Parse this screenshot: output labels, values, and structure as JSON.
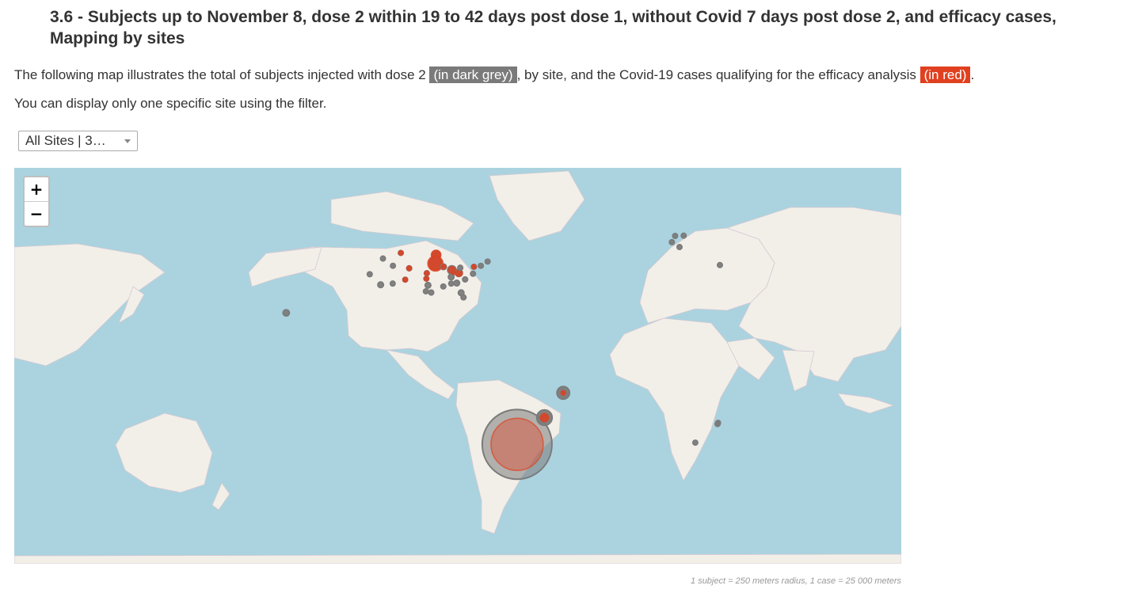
{
  "header": {
    "title": "3.6 - Subjects up to November 8, dose 2 within 19 to 42 days post dose 1, without Covid 7 days post dose 2, and efficacy cases, Mapping by sites"
  },
  "intro": {
    "part1": "The following map illustrates the total of subjects injected with dose 2 ",
    "grey_badge": "(in dark grey)",
    "part2": ", by site, and the Covid-19 cases qualifying for the efficacy analysis ",
    "red_badge": "(in red)",
    "part3": "."
  },
  "filter_note": "You can display only one specific site using the filter.",
  "site_filter": {
    "selected": "All Sites | 3…"
  },
  "zoom": {
    "in_label": "+",
    "out_label": "−"
  },
  "legend": {
    "caption": "1 subject = 250 meters radius, 1 case = 25 000 meters",
    "subjects_color": "#7b7b7b",
    "cases_color": "#e0401f"
  },
  "map": {
    "ocean_color": "#aad3df",
    "land_color": "#f2efe9",
    "sites": [
      {
        "region": "Argentina (Buenos Aires)",
        "lon": -58.4,
        "lat": -34.6,
        "subjects_scale": 1.0,
        "cases_scale": 0.75
      },
      {
        "region": "Brazil (Sao Paulo)",
        "lon": -46.6,
        "lat": -23.5,
        "subjects_scale": 0.22,
        "cases_scale": 0.12
      },
      {
        "region": "Brazil (Salvador)",
        "lon": -38.5,
        "lat": -13.0,
        "subjects_scale": 0.18,
        "cases_scale": 0.03
      },
      {
        "region": "USA (Honolulu)",
        "lon": -157.9,
        "lat": 21.3,
        "subjects_scale": 0.09,
        "cases_scale": 0
      },
      {
        "region": "USA (Minnesota)",
        "lon": -93.3,
        "lat": 45.0,
        "subjects_scale": 0.12,
        "cases_scale": 0.14
      },
      {
        "region": "USA (Iowa)",
        "lon": -93.6,
        "lat": 41.6,
        "subjects_scale": 0.18,
        "cases_scale": 0.22
      },
      {
        "region": "USA (Illinois)",
        "lon": -90.1,
        "lat": 40.3,
        "subjects_scale": 0.08,
        "cases_scale": 0.06
      },
      {
        "region": "USA (Missouri)",
        "lon": -86.5,
        "lat": 39.0,
        "subjects_scale": 0.12,
        "cases_scale": 0.1
      },
      {
        "region": "USA (Indiana)",
        "lon": -83.5,
        "lat": 37.8,
        "subjects_scale": 0.1,
        "cases_scale": 0.1
      },
      {
        "region": "USA (Colorado)",
        "lon": -104.9,
        "lat": 39.7,
        "subjects_scale": 0.07,
        "cases_scale": 0.07
      },
      {
        "region": "USA (Utah)",
        "lon": -111.9,
        "lat": 40.7,
        "subjects_scale": 0.06,
        "cases_scale": 0
      },
      {
        "region": "USA (Idaho)",
        "lon": -116.2,
        "lat": 43.6,
        "subjects_scale": 0.05,
        "cases_scale": 0
      },
      {
        "region": "USA (Montana)",
        "lon": -108.5,
        "lat": 45.8,
        "subjects_scale": 0.06,
        "cases_scale": 0.06
      },
      {
        "region": "USA (California North)",
        "lon": -121.9,
        "lat": 37.3,
        "subjects_scale": 0.05,
        "cases_scale": 0
      },
      {
        "region": "USA (California South)",
        "lon": -117.2,
        "lat": 33.0,
        "subjects_scale": 0.08,
        "cases_scale": 0
      },
      {
        "region": "USA (Arizona)",
        "lon": -112.0,
        "lat": 33.5,
        "subjects_scale": 0.05,
        "cases_scale": 0
      },
      {
        "region": "USA (New Mexico)",
        "lon": -106.6,
        "lat": 35.1,
        "subjects_scale": 0.04,
        "cases_scale": 0.03
      },
      {
        "region": "USA (Oklahoma)",
        "lon": -97.5,
        "lat": 35.5,
        "subjects_scale": 0.05,
        "cases_scale": 0.05
      },
      {
        "region": "USA (Kansas)",
        "lon": -97.3,
        "lat": 37.7,
        "subjects_scale": 0.07,
        "cases_scale": 0.06
      },
      {
        "region": "USA (Texas North)",
        "lon": -96.8,
        "lat": 32.8,
        "subjects_scale": 0.08,
        "cases_scale": 0
      },
      {
        "region": "USA (Texas Central)",
        "lon": -97.7,
        "lat": 30.3,
        "subjects_scale": 0.06,
        "cases_scale": 0
      },
      {
        "region": "USA (Houston)",
        "lon": -95.4,
        "lat": 29.8,
        "subjects_scale": 0.07,
        "cases_scale": 0
      },
      {
        "region": "USA (Tennessee)",
        "lon": -86.8,
        "lat": 36.2,
        "subjects_scale": 0.08,
        "cases_scale": 0
      },
      {
        "region": "USA (Kentucky)",
        "lon": -85.8,
        "lat": 38.2,
        "subjects_scale": 0.06,
        "cases_scale": 0.04
      },
      {
        "region": "USA (Ohio)",
        "lon": -82.9,
        "lat": 39.9,
        "subjects_scale": 0.07,
        "cases_scale": 0
      },
      {
        "region": "USA (Georgia)",
        "lon": -84.4,
        "lat": 33.7,
        "subjects_scale": 0.08,
        "cases_scale": 0
      },
      {
        "region": "USA (Carolinas)",
        "lon": -80.8,
        "lat": 35.2,
        "subjects_scale": 0.07,
        "cases_scale": 0
      },
      {
        "region": "USA (Virginia)",
        "lon": -77.4,
        "lat": 37.5,
        "subjects_scale": 0.06,
        "cases_scale": 0
      },
      {
        "region": "USA (Pennsylvania)",
        "lon": -77.0,
        "lat": 40.3,
        "subjects_scale": 0.06,
        "cases_scale": 0.04
      },
      {
        "region": "USA (New York)",
        "lon": -74.0,
        "lat": 40.7,
        "subjects_scale": 0.06,
        "cases_scale": 0
      },
      {
        "region": "USA (Massachusetts)",
        "lon": -71.1,
        "lat": 42.4,
        "subjects_scale": 0.05,
        "cases_scale": 0
      },
      {
        "region": "USA (Florida North)",
        "lon": -82.5,
        "lat": 29.7,
        "subjects_scale": 0.08,
        "cases_scale": 0
      },
      {
        "region": "USA (Florida South)",
        "lon": -81.5,
        "lat": 27.8,
        "subjects_scale": 0.07,
        "cases_scale": 0
      },
      {
        "region": "USA (Alabama)",
        "lon": -86.8,
        "lat": 33.5,
        "subjects_scale": 0.05,
        "cases_scale": 0
      },
      {
        "region": "USA (Mississippi)",
        "lon": -90.2,
        "lat": 32.3,
        "subjects_scale": 0.04,
        "cases_scale": 0
      },
      {
        "region": "Germany (Berlin)",
        "lon": 13.4,
        "lat": 52.5,
        "subjects_scale": 0.03,
        "cases_scale": 0
      },
      {
        "region": "Germany (Mainz)",
        "lon": 8.3,
        "lat": 50.0,
        "subjects_scale": 0.03,
        "cases_scale": 0
      },
      {
        "region": "Germany (Hannover)",
        "lon": 9.7,
        "lat": 52.4,
        "subjects_scale": 0.03,
        "cases_scale": 0
      },
      {
        "region": "Germany (Munich)",
        "lon": 11.6,
        "lat": 48.1,
        "subjects_scale": 0.03,
        "cases_scale": 0
      },
      {
        "region": "Turkey (Istanbul)",
        "lon": 29.0,
        "lat": 41.0,
        "subjects_scale": 0.02,
        "cases_scale": 0
      },
      {
        "region": "South Africa (Johannesburg)",
        "lon": 28.0,
        "lat": -26.2,
        "subjects_scale": 0.03,
        "cases_scale": 0
      },
      {
        "region": "South Africa (Pretoria)",
        "lon": 28.2,
        "lat": -25.7,
        "subjects_scale": 0.03,
        "cases_scale": 0
      },
      {
        "region": "South Africa (Cape Town)",
        "lon": 18.4,
        "lat": -33.9,
        "subjects_scale": 0.04,
        "cases_scale": 0
      }
    ]
  }
}
